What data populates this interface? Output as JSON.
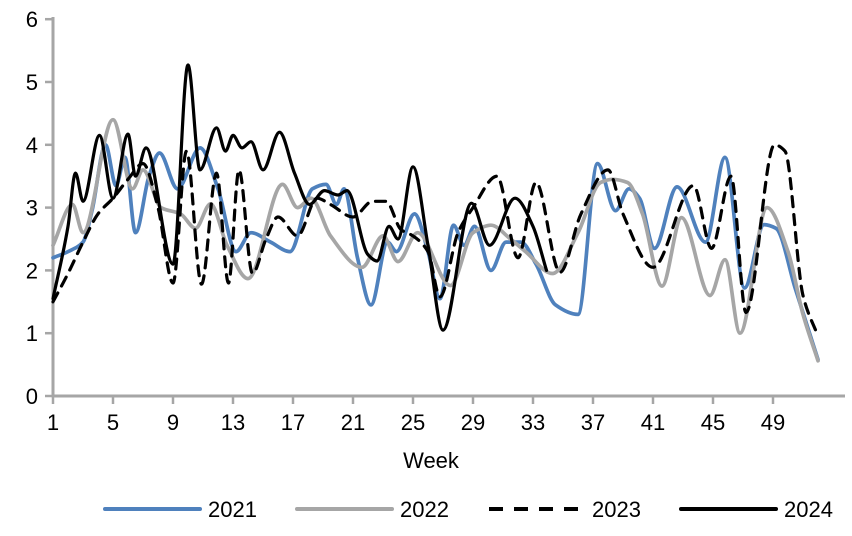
{
  "page": {
    "background": "#FFFFFF",
    "text_color": "#000000",
    "axis_color": "#A6A6A6"
  },
  "chart_data": {
    "type": "line",
    "title": "",
    "xlabel": "Week",
    "ylabel": "",
    "xlim": [
      1,
      53.6
    ],
    "ylim": [
      0,
      6
    ],
    "grid": false,
    "legend_position": "bottom",
    "xticks": [
      1,
      5,
      9,
      13,
      17,
      21,
      25,
      29,
      33,
      37,
      41,
      45,
      49
    ],
    "yticks": [
      0,
      1,
      2,
      3,
      4,
      5,
      6
    ],
    "series": [
      {
        "name": "2021",
        "color": "#4F81BD",
        "style": "solid",
        "width": 3.7,
        "x": [
          1,
          2,
          3,
          3.6,
          4.5,
          5.2,
          5.8,
          6.5,
          7.4,
          8.1,
          9.3,
          10.8,
          12,
          13.2,
          14.2,
          15.5,
          16.8,
          18.3,
          19.2,
          19.9,
          20.4,
          21.3,
          22.2,
          23.3,
          23.9,
          25.1,
          26,
          26.8,
          27.7,
          28.4,
          29.1,
          30.2,
          31.2,
          32.2,
          33.2,
          34.5,
          36,
          37.3,
          38.5,
          39.4,
          40.1,
          41.1,
          42.6,
          44.5,
          45.8,
          47.1,
          48.4,
          49.2,
          50.5,
          52
        ],
        "y": [
          2.2,
          2.3,
          2.45,
          2.95,
          4.0,
          3.35,
          3.8,
          2.6,
          3.5,
          3.87,
          3.3,
          3.95,
          3.3,
          2.3,
          2.6,
          2.45,
          2.3,
          3.3,
          3.37,
          3.05,
          3.3,
          2.2,
          1.45,
          2.45,
          2.3,
          2.9,
          2.3,
          1.55,
          2.72,
          2.4,
          2.7,
          2.0,
          2.45,
          2.45,
          2.1,
          1.45,
          1.3,
          3.7,
          2.95,
          3.3,
          3.15,
          2.35,
          3.33,
          2.45,
          3.8,
          1.72,
          2.73,
          2.67,
          1.7,
          0.58
        ]
      },
      {
        "name": "2022",
        "color": "#A6A6A6",
        "style": "solid",
        "width": 3.7,
        "x": [
          1,
          2.3,
          3,
          5,
          6.3,
          7,
          8.2,
          9.5,
          10.5,
          11.5,
          12.6,
          14,
          16.3,
          17.3,
          18.2,
          19.5,
          21.6,
          23,
          24,
          25.3,
          27.5,
          29,
          30.2,
          31.5,
          32.5,
          34.3,
          36,
          37.5,
          38.3,
          39.3,
          40.3,
          41.6,
          42.9,
          44.8,
          45.8,
          46.8,
          48.6,
          50,
          51,
          52
        ],
        "y": [
          2.4,
          3.05,
          2.6,
          4.4,
          3.3,
          3.6,
          3.0,
          2.9,
          2.67,
          3.06,
          2.4,
          1.87,
          3.37,
          3.0,
          3.15,
          2.55,
          2.05,
          2.55,
          2.14,
          2.6,
          1.76,
          2.6,
          2.72,
          2.5,
          2.3,
          1.95,
          2.6,
          3.4,
          3.45,
          3.4,
          2.9,
          1.75,
          2.84,
          1.6,
          2.17,
          1.0,
          3.0,
          2.3,
          1.3,
          0.56
        ]
      },
      {
        "name": "2023",
        "color": "#000000",
        "style": "dashed",
        "width": 3.2,
        "x": [
          1,
          2,
          3,
          4,
          5,
          6,
          7,
          8,
          9,
          9.9,
          10.9,
          11.9,
          12.7,
          13.4,
          14.3,
          15.2,
          16,
          17.3,
          18.6,
          19.5,
          21,
          22.3,
          23.2,
          24.2,
          25,
          26,
          26.8,
          28,
          29,
          30.6,
          32,
          33.2,
          34.8,
          36.2,
          38,
          39,
          41,
          43.7,
          44.9,
          46.2,
          47.2,
          49.1,
          49.8,
          51,
          52
        ],
        "y": [
          1.5,
          1.95,
          2.45,
          2.9,
          3.15,
          3.45,
          3.7,
          3.0,
          1.8,
          3.9,
          1.78,
          3.55,
          1.8,
          3.6,
          1.95,
          2.5,
          2.85,
          2.55,
          3.15,
          3.05,
          2.85,
          3.1,
          3.1,
          2.65,
          2.55,
          2.3,
          1.58,
          2.6,
          3.0,
          3.5,
          2.2,
          3.4,
          1.97,
          2.9,
          3.6,
          2.9,
          2.05,
          3.35,
          2.35,
          3.5,
          1.33,
          4.0,
          3.9,
          1.6,
          0.95
        ]
      },
      {
        "name": "2024",
        "color": "#000000",
        "style": "solid",
        "width": 3.2,
        "x": [
          1,
          2,
          2.5,
          3,
          4.1,
          5,
          6,
          6.5,
          7.2,
          9,
          10,
          10.8,
          11.9,
          12.5,
          13,
          13.6,
          14.2,
          15,
          16.1,
          17.1,
          18.1,
          19.1,
          20,
          20.6,
          22,
          22.6,
          23.4,
          24,
          25,
          26,
          27,
          28.9,
          30.1,
          31.8,
          33,
          33.9
        ],
        "y": [
          1.55,
          2.7,
          3.55,
          3.1,
          4.15,
          3.15,
          4.17,
          3.5,
          3.95,
          2.1,
          5.27,
          3.6,
          4.27,
          3.9,
          4.15,
          3.95,
          4.05,
          3.6,
          4.2,
          3.55,
          3.05,
          3.27,
          3.2,
          3.27,
          2.25,
          2.15,
          2.7,
          2.5,
          3.65,
          2.4,
          1.05,
          3.07,
          2.4,
          3.15,
          2.7,
          2.0
        ]
      }
    ],
    "legend": [
      "2021",
      "2022",
      "2023",
      "2024"
    ]
  }
}
